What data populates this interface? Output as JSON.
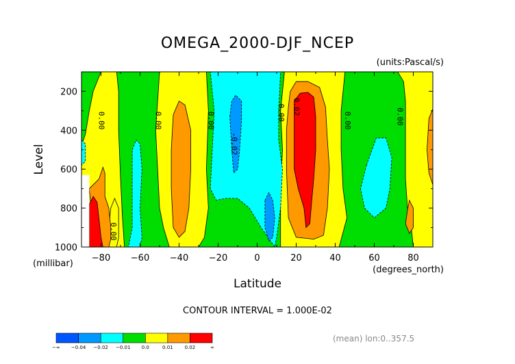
{
  "chart_data": {
    "type": "heatmap",
    "title": "OMEGA_2000-DJF_NCEP",
    "units_label": "(units:Pascal/s)",
    "xlabel": "Latitude",
    "xunits_label": "(degrees_north)",
    "ylabel": "Level",
    "yunits_label": "(millibar)",
    "xlim": [
      -90,
      90
    ],
    "ylim": [
      1000,
      100
    ],
    "xticks": [
      -80,
      -60,
      -40,
      -20,
      0,
      20,
      40,
      60,
      80
    ],
    "xtick_labels": [
      "-80",
      "-60",
      "-40",
      "-20",
      "0",
      "20",
      "40",
      "60",
      "80"
    ],
    "yticks": [
      200,
      400,
      600,
      800,
      1000
    ],
    "ytick_labels": [
      "200",
      "400",
      "600",
      "800",
      "1000"
    ],
    "contour_interval_label": "CONTOUR INTERVAL = 1.000E-02",
    "mean_label": "(mean) lon:0..357.5",
    "colorbar": {
      "colors": [
        "#0055ff",
        "#0099ff",
        "#00ffff",
        "#00dd00",
        "#ffff00",
        "#ff9900",
        "#ff0000"
      ],
      "labels": [
        "-∞",
        "-0.04",
        "-0.02",
        "-0.01",
        "0.0",
        "0.01",
        "0.02",
        "∞"
      ]
    },
    "regions": [
      {
        "name": "green-bg",
        "value": -0.005,
        "color": "#00dd00",
        "poly": [
          [
            -90,
            100
          ],
          [
            90,
            100
          ],
          [
            90,
            1000
          ],
          [
            -90,
            1000
          ]
        ]
      },
      {
        "name": "yellow-left",
        "value": 0.005,
        "color": "#ffff00",
        "poly": [
          [
            -90,
            1000
          ],
          [
            -90,
            480
          ],
          [
            -88,
            420
          ],
          [
            -86,
            300
          ],
          [
            -84,
            200
          ],
          [
            -80,
            100
          ],
          [
            -72,
            100
          ],
          [
            -71,
            200
          ],
          [
            -71,
            400
          ],
          [
            -70,
            650
          ],
          [
            -69,
            850
          ],
          [
            -68,
            1000
          ]
        ]
      },
      {
        "name": "yellow-minus40",
        "value": 0.005,
        "color": "#ffff00",
        "poly": [
          [
            -50,
            100
          ],
          [
            -26,
            100
          ],
          [
            -25,
            300
          ],
          [
            -26,
            600
          ],
          [
            -25,
            800
          ],
          [
            -27,
            950
          ],
          [
            -30,
            1000
          ],
          [
            -45,
            1000
          ],
          [
            -48,
            900
          ],
          [
            -50,
            800
          ],
          [
            -51,
            600
          ],
          [
            -52,
            400
          ],
          [
            -51,
            250
          ]
        ]
      },
      {
        "name": "yellow-plus20",
        "value": 0.005,
        "color": "#ffff00",
        "poly": [
          [
            14,
            100
          ],
          [
            45,
            100
          ],
          [
            43,
            300
          ],
          [
            43,
            500
          ],
          [
            44,
            700
          ],
          [
            46,
            850
          ],
          [
            42,
            1000
          ],
          [
            12,
            1000
          ],
          [
            12,
            850
          ],
          [
            12,
            700
          ],
          [
            13,
            500
          ],
          [
            12,
            300
          ]
        ]
      },
      {
        "name": "yellow-right",
        "value": 0.005,
        "color": "#ffff00",
        "poly": [
          [
            72,
            100
          ],
          [
            90,
            100
          ],
          [
            90,
            1000
          ],
          [
            80,
            1000
          ],
          [
            79,
            900
          ],
          [
            77,
            800
          ],
          [
            76,
            650
          ],
          [
            76,
            500
          ],
          [
            76,
            350
          ],
          [
            76,
            250
          ],
          [
            75,
            150
          ]
        ]
      },
      {
        "name": "yellow-bottom",
        "value": 0.005,
        "color": "#ffff00",
        "poly": [
          [
            -78,
            1000
          ],
          [
            -76,
            900
          ],
          [
            -75,
            800
          ],
          [
            -73,
            750
          ],
          [
            -71,
            800
          ],
          [
            -71,
            950
          ],
          [
            -72,
            1000
          ]
        ]
      },
      {
        "name": "cyan-center",
        "value": -0.015,
        "color": "#00ffff",
        "poly": [
          [
            -24,
            100
          ],
          [
            12,
            100
          ],
          [
            11,
            300
          ],
          [
            11,
            450
          ],
          [
            13,
            600
          ],
          [
            12,
            800
          ],
          [
            10,
            950
          ],
          [
            9,
            1000
          ],
          [
            2,
            900
          ],
          [
            -4,
            800
          ],
          [
            -10,
            750
          ],
          [
            -16,
            750
          ],
          [
            -21,
            760
          ],
          [
            -24,
            700
          ],
          [
            -23,
            500
          ],
          [
            -22,
            300
          ]
        ]
      },
      {
        "name": "cyan-minus60",
        "value": -0.015,
        "color": "#00ffff",
        "poly": [
          [
            -64,
            500
          ],
          [
            -62,
            450
          ],
          [
            -60,
            470
          ],
          [
            -59,
            600
          ],
          [
            -60,
            800
          ],
          [
            -59,
            950
          ],
          [
            -60,
            1000
          ],
          [
            -66,
            1000
          ],
          [
            -64,
            900
          ],
          [
            -64,
            700
          ]
        ]
      },
      {
        "name": "cyan-plus60",
        "value": -0.015,
        "color": "#00ffff",
        "poly": [
          [
            56,
            580
          ],
          [
            61,
            440
          ],
          [
            66,
            440
          ],
          [
            69,
            540
          ],
          [
            68,
            700
          ],
          [
            66,
            800
          ],
          [
            60,
            850
          ],
          [
            55,
            800
          ],
          [
            53,
            700
          ]
        ]
      },
      {
        "name": "cyan-left-edge",
        "value": -0.015,
        "color": "#00ffff",
        "poly": [
          [
            -90,
            450
          ],
          [
            -88,
            470
          ],
          [
            -88,
            560
          ],
          [
            -90,
            580
          ]
        ]
      },
      {
        "name": "blue-center",
        "value": -0.03,
        "color": "#0099ff",
        "poly": [
          [
            -14,
            330
          ],
          [
            -13,
            250
          ],
          [
            -11,
            220
          ],
          [
            -8,
            250
          ],
          [
            -8,
            350
          ],
          [
            -9,
            500
          ],
          [
            -10,
            600
          ],
          [
            -12,
            620
          ],
          [
            -13,
            500
          ]
        ]
      },
      {
        "name": "blue-lower",
        "value": -0.03,
        "color": "#0099ff",
        "poly": [
          [
            4,
            760
          ],
          [
            6,
            720
          ],
          [
            8,
            760
          ],
          [
            9,
            850
          ],
          [
            8,
            950
          ],
          [
            6,
            970
          ],
          [
            4,
            900
          ]
        ]
      },
      {
        "name": "orange-minus80",
        "value": 0.015,
        "color": "#ff9900",
        "poly": [
          [
            -81,
            650
          ],
          [
            -79,
            590
          ],
          [
            -78,
            620
          ],
          [
            -78,
            740
          ],
          [
            -76,
            800
          ],
          [
            -75,
            900
          ],
          [
            -75,
            960
          ],
          [
            -76,
            1000
          ],
          [
            -82,
            1000
          ],
          [
            -85,
            980
          ],
          [
            -85,
            820
          ],
          [
            -86,
            700
          ]
        ]
      },
      {
        "name": "orange-minus40",
        "value": 0.015,
        "color": "#ff9900",
        "poly": [
          [
            -43,
            320
          ],
          [
            -40,
            250
          ],
          [
            -37,
            270
          ],
          [
            -34,
            400
          ],
          [
            -34,
            600
          ],
          [
            -35,
            800
          ],
          [
            -37,
            920
          ],
          [
            -40,
            950
          ],
          [
            -43,
            900
          ],
          [
            -44,
            700
          ],
          [
            -44,
            500
          ]
        ]
      },
      {
        "name": "orange-plus20",
        "value": 0.015,
        "color": "#ff9900",
        "poly": [
          [
            17,
            200
          ],
          [
            20,
            150
          ],
          [
            26,
            150
          ],
          [
            32,
            180
          ],
          [
            35,
            280
          ],
          [
            36,
            450
          ],
          [
            37,
            600
          ],
          [
            36,
            800
          ],
          [
            34,
            940
          ],
          [
            29,
            960
          ],
          [
            20,
            950
          ],
          [
            16,
            850
          ],
          [
            15,
            600
          ],
          [
            15,
            400
          ],
          [
            16,
            280
          ]
        ]
      },
      {
        "name": "orange-plus80",
        "value": 0.015,
        "color": "#ff9900",
        "poly": [
          [
            77,
            810
          ],
          [
            78,
            760
          ],
          [
            80,
            800
          ],
          [
            80,
            900
          ],
          [
            78,
            930
          ],
          [
            76,
            880
          ]
        ]
      },
      {
        "name": "orange-right",
        "value": 0.015,
        "color": "#ff9900",
        "poly": [
          [
            88,
            340
          ],
          [
            90,
            290
          ],
          [
            90,
            680
          ],
          [
            88,
            620
          ],
          [
            87,
            500
          ]
        ]
      },
      {
        "name": "red-plus20",
        "value": 0.025,
        "color": "#ff0000",
        "poly": [
          [
            19,
            250
          ],
          [
            22,
            210
          ],
          [
            26,
            205
          ],
          [
            29,
            230
          ],
          [
            30,
            330
          ],
          [
            30,
            500
          ],
          [
            29,
            650
          ],
          [
            28,
            760
          ],
          [
            27,
            880
          ],
          [
            25,
            900
          ],
          [
            24,
            800
          ],
          [
            21,
            700
          ],
          [
            19,
            600
          ],
          [
            19,
            450
          ]
        ]
      },
      {
        "name": "red-minus80",
        "value": 0.025,
        "color": "#ff0000",
        "poly": [
          [
            -86,
            780
          ],
          [
            -84,
            740
          ],
          [
            -82,
            770
          ],
          [
            -81,
            860
          ],
          [
            -80,
            950
          ],
          [
            -79,
            1000
          ],
          [
            -86,
            1000
          ],
          [
            -86,
            850
          ]
        ]
      },
      {
        "name": "white-missing",
        "value": null,
        "color": "#ffffff",
        "poly": [
          [
            -90,
            630
          ],
          [
            -86,
            630
          ],
          [
            -86,
            1000
          ],
          [
            -90,
            1000
          ]
        ]
      }
    ],
    "contour_labels": [
      {
        "text": "0.00",
        "x": -81,
        "y": 350
      },
      {
        "text": "0.00",
        "x": -52,
        "y": 350
      },
      {
        "text": "0.00",
        "x": -25,
        "y": 350
      },
      {
        "text": "-0.02",
        "x": -13,
        "y": 470
      },
      {
        "text": "0.00",
        "x": 11,
        "y": 310
      },
      {
        "text": "0.02",
        "x": 19,
        "y": 280
      },
      {
        "text": "0.00",
        "x": 45,
        "y": 350
      },
      {
        "text": "0.00",
        "x": 72,
        "y": 330
      },
      {
        "text": "0.00",
        "x": -75,
        "y": 920
      }
    ]
  }
}
